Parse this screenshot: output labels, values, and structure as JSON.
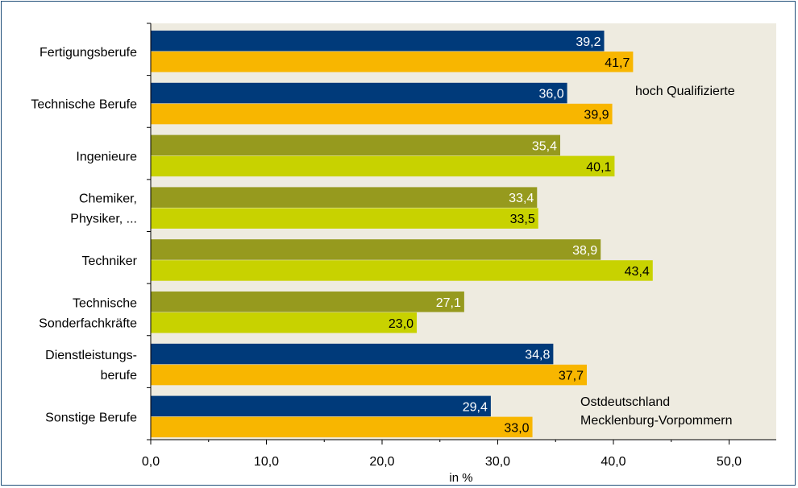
{
  "chart_data": {
    "type": "bar",
    "orientation": "horizontal",
    "categories": [
      "Fertigungsberufe",
      "Technische Berufe",
      "Ingenieure",
      "Chemiker, Physiker, ...",
      "Techniker",
      "Technische Sonderfachkräfte",
      "Dienstleistungsberufe",
      "Sonstige Berufe"
    ],
    "category_lines": [
      [
        "Fertigungsberufe"
      ],
      [
        "Technische Berufe"
      ],
      [
        "Ingenieure"
      ],
      [
        "Chemiker,",
        "Physiker, ..."
      ],
      [
        "Techniker"
      ],
      [
        "Technische",
        "Sonderfachkräfte"
      ],
      [
        "Dienstleistungs-",
        "berufe"
      ],
      [
        "Sonstige Berufe"
      ]
    ],
    "series": [
      {
        "name": "Ostdeutschland",
        "values": [
          39.2,
          36.0,
          35.4,
          33.4,
          38.9,
          27.1,
          34.8,
          29.4
        ]
      },
      {
        "name": "Mecklenburg-Vorpommern",
        "values": [
          41.7,
          39.9,
          40.1,
          33.5,
          43.4,
          23.0,
          37.7,
          33.0
        ]
      }
    ],
    "value_labels": [
      [
        "39,2",
        "36,0",
        "35,4",
        "33,4",
        "38,9",
        "27,1",
        "34,8",
        "29,4"
      ],
      [
        "41,7",
        "39,9",
        "40,1",
        "33,5",
        "43,4",
        "23,0",
        "37,7",
        "33,0"
      ]
    ],
    "highlighted_categories": [
      2,
      3,
      4,
      5
    ],
    "colors": {
      "series1": "#003a7a",
      "series2": "#f8b600",
      "series1_highlight": "#969a1e",
      "series2_highlight": "#c8d200",
      "plot_background": "#eeebe0",
      "label_light": "#ffffff",
      "label_dark": "#000000"
    },
    "xlim": [
      0,
      55
    ],
    "xticks": [
      0,
      10,
      20,
      30,
      40,
      50
    ],
    "xtick_labels": [
      "0,0",
      "10,0",
      "20,0",
      "30,0",
      "40,0",
      "50,0"
    ],
    "xlabel": "in %",
    "annotation": "hoch Qualifizierte",
    "legend_lines": [
      "Ostdeutschland",
      "Mecklenburg-Vorpommern"
    ],
    "grid": false
  }
}
